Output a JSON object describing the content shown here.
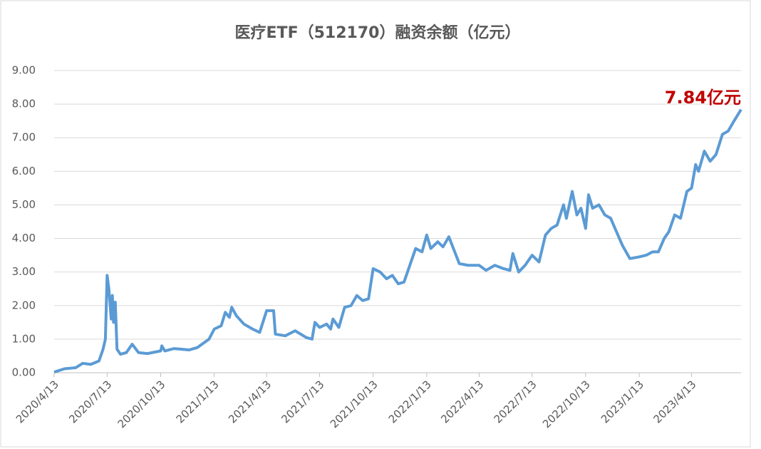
{
  "chart_data": {
    "type": "line",
    "title": "医疗ETF（512170）融资余额（亿元）",
    "annotation": "7.84亿元",
    "x": [
      "2020/4/13",
      "2020/5/1",
      "2020/5/20",
      "2020/6/1",
      "2020/6/15",
      "2020/6/29",
      "2020/7/6",
      "2020/7/10",
      "2020/7/13",
      "2020/7/16",
      "2020/7/20",
      "2020/7/22",
      "2020/7/24",
      "2020/7/27",
      "2020/7/30",
      "2020/8/5",
      "2020/8/15",
      "2020/8/25",
      "2020/9/5",
      "2020/9/20",
      "2020/10/13",
      "2020/10/15",
      "2020/10/20",
      "2020/11/5",
      "2020/12/1",
      "2020/12/15",
      "2021/1/4",
      "2021/1/13",
      "2021/1/25",
      "2021/2/1",
      "2021/2/8",
      "2021/2/12",
      "2021/2/20",
      "2021/3/5",
      "2021/3/20",
      "2021/4/1",
      "2021/4/13",
      "2021/4/25",
      "2021/4/28",
      "2021/5/15",
      "2021/6/1",
      "2021/6/20",
      "2021/6/30",
      "2021/7/5",
      "2021/7/13",
      "2021/7/25",
      "2021/8/1",
      "2021/8/5",
      "2021/8/15",
      "2021/8/25",
      "2021/9/5",
      "2021/9/15",
      "2021/9/25",
      "2021/10/5",
      "2021/10/13",
      "2021/10/25",
      "2021/11/5",
      "2021/11/15",
      "2021/11/25",
      "2021/12/5",
      "2021/12/15",
      "2021/12/25",
      "2022/1/5",
      "2022/1/13",
      "2022/1/20",
      "2022/2/1",
      "2022/2/10",
      "2022/2/20",
      "2022/3/1",
      "2022/3/10",
      "2022/3/25",
      "2022/4/13",
      "2022/4/25",
      "2022/5/10",
      "2022/5/25",
      "2022/6/5",
      "2022/6/10",
      "2022/6/20",
      "2022/7/1",
      "2022/7/13",
      "2022/7/25",
      "2022/8/5",
      "2022/8/15",
      "2022/8/25",
      "2022/9/5",
      "2022/9/10",
      "2022/9/20",
      "2022/9/28",
      "2022/10/5",
      "2022/10/13",
      "2022/10/18",
      "2022/10/25",
      "2022/11/5",
      "2022/11/15",
      "2022/11/25",
      "2022/12/5",
      "2022/12/15",
      "2022/12/28",
      "2023/1/13",
      "2023/1/25",
      "2023/2/5",
      "2023/2/15",
      "2023/2/25",
      "2023/3/5",
      "2023/3/15",
      "2023/3/25",
      "2023/4/5",
      "2023/4/13",
      "2023/4/20",
      "2023/4/25",
      "2023/5/5",
      "2023/5/15",
      "2023/5/25",
      "2023/6/5",
      "2023/6/15",
      "2023/6/25",
      "2023/7/7"
    ],
    "series": [
      {
        "name": "融资余额",
        "color": "#5b9bd5",
        "values": [
          0.02,
          0.12,
          0.15,
          0.28,
          0.25,
          0.35,
          0.7,
          1.0,
          2.9,
          2.5,
          1.6,
          2.3,
          1.5,
          2.1,
          0.7,
          0.55,
          0.6,
          0.85,
          0.6,
          0.57,
          0.65,
          0.8,
          0.65,
          0.72,
          0.68,
          0.75,
          1.0,
          1.3,
          1.4,
          1.8,
          1.65,
          1.95,
          1.7,
          1.45,
          1.3,
          1.2,
          1.85,
          1.85,
          1.15,
          1.1,
          1.25,
          1.05,
          1.0,
          1.5,
          1.35,
          1.45,
          1.3,
          1.6,
          1.35,
          1.95,
          2.0,
          2.3,
          2.15,
          2.2,
          3.1,
          3.0,
          2.8,
          2.9,
          2.65,
          2.7,
          3.2,
          3.7,
          3.6,
          4.1,
          3.7,
          3.9,
          3.75,
          4.05,
          3.65,
          3.25,
          3.2,
          3.2,
          3.05,
          3.2,
          3.1,
          3.05,
          3.55,
          3.0,
          3.2,
          3.5,
          3.3,
          4.1,
          4.3,
          4.4,
          5.0,
          4.6,
          5.4,
          4.7,
          4.9,
          4.3,
          5.3,
          4.9,
          5.0,
          4.7,
          4.6,
          4.2,
          3.8,
          3.4,
          3.45,
          3.5,
          3.6,
          3.6,
          4.0,
          4.2,
          4.7,
          4.6,
          5.4,
          5.5,
          6.2,
          6.0,
          6.6,
          6.3,
          6.5,
          7.1,
          7.2,
          7.5,
          7.84
        ]
      }
    ],
    "xlim": [
      "2020/4/13",
      "2023/7/7"
    ],
    "xticks": [
      "2020/4/13",
      "2020/7/13",
      "2020/10/13",
      "2021/1/13",
      "2021/4/13",
      "2021/7/13",
      "2021/10/13",
      "2022/1/13",
      "2022/4/13",
      "2022/7/13",
      "2022/10/13",
      "2023/1/13",
      "2023/4/13"
    ],
    "ylim": [
      0,
      9
    ],
    "yticks": [
      {
        "value": 0,
        "label": "0.00"
      },
      {
        "value": 1,
        "label": "1.00"
      },
      {
        "value": 2,
        "label": "2.00"
      },
      {
        "value": 3,
        "label": "3.00"
      },
      {
        "value": 4,
        "label": "4.00"
      },
      {
        "value": 5,
        "label": "5.00"
      },
      {
        "value": 6,
        "label": "6.00"
      },
      {
        "value": 7,
        "label": "7.00"
      },
      {
        "value": 8,
        "label": "8.00"
      },
      {
        "value": 9,
        "label": "9.00"
      }
    ],
    "grid": true
  }
}
